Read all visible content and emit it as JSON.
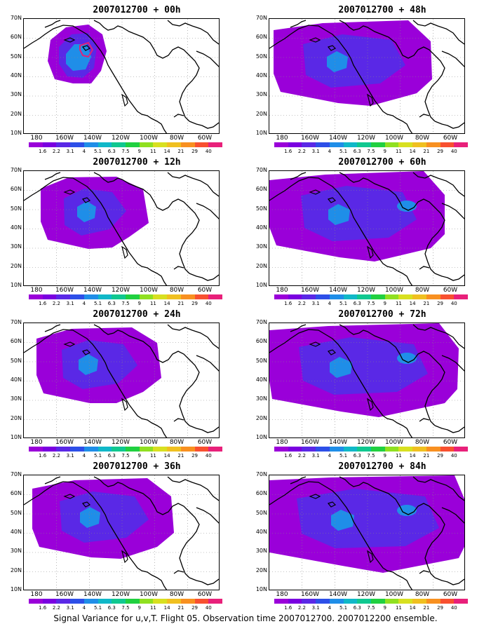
{
  "panels": [
    {
      "title": "2007012700 + 00h",
      "spread": 0,
      "red_contour": true
    },
    {
      "title": "2007012700 + 48h",
      "spread": 4,
      "red_contour": false
    },
    {
      "title": "2007012700 + 12h",
      "spread": 1,
      "red_contour": false
    },
    {
      "title": "2007012700 + 60h",
      "spread": 5,
      "red_contour": false
    },
    {
      "title": "2007012700 + 24h",
      "spread": 2,
      "red_contour": false
    },
    {
      "title": "2007012700 + 72h",
      "spread": 6,
      "red_contour": false
    },
    {
      "title": "2007012700 + 36h",
      "spread": 3,
      "red_contour": false
    },
    {
      "title": "2007012700 + 84h",
      "spread": 7,
      "red_contour": false
    }
  ],
  "lat_labels": [
    "70N",
    "60N",
    "50N",
    "40N",
    "30N",
    "20N",
    "10N"
  ],
  "lon_labels": [
    "180",
    "160W",
    "140W",
    "120W",
    "100W",
    "80W",
    "60W"
  ],
  "colorbar": {
    "labels": [
      "1.6",
      "2.2",
      "3.1",
      "4",
      "5.1",
      "6.3",
      "7.5",
      "9",
      "11",
      "14",
      "21",
      "29",
      "40"
    ],
    "colors": [
      "#9a00d9",
      "#7a00e0",
      "#5a28e6",
      "#2d4fe8",
      "#1f8ee8",
      "#10b8c8",
      "#10c890",
      "#20d040",
      "#90e020",
      "#d8e020",
      "#f0c020",
      "#f89020",
      "#f85030",
      "#e8207a"
    ]
  },
  "caption": "Signal Variance for u,v,T. Flight 05. Observation time 2007012700. 2007012200 ensemble."
}
